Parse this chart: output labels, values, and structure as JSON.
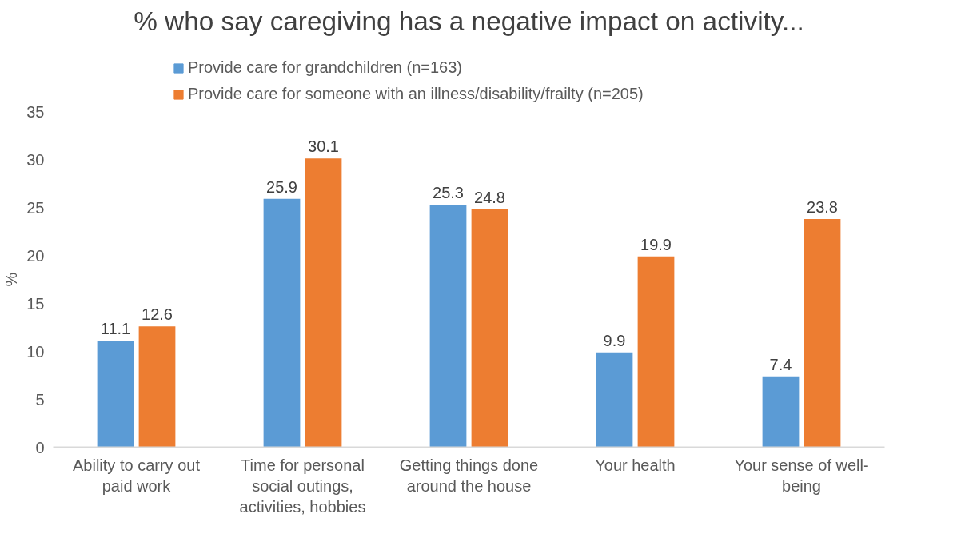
{
  "chart_data": {
    "type": "bar",
    "title": "% who say caregiving has a negative impact on activity...",
    "ylabel": "%",
    "categories": [
      "Ability to carry out paid work",
      "Time for personal social outings, activities, hobbies",
      "Getting things done around the house",
      "Your health",
      "Your sense of well-being"
    ],
    "series": [
      {
        "name": "Provide care for grandchildren (n=163)",
        "color": "#5b9bd5",
        "values": [
          11.1,
          25.9,
          25.3,
          9.9,
          7.4
        ]
      },
      {
        "name": "Provide care for someone with an illness/disability/frailty (n=205)",
        "color": "#ed7d31",
        "values": [
          12.6,
          30.1,
          24.8,
          19.9,
          23.8
        ]
      }
    ],
    "ylim": [
      0,
      35
    ],
    "yticks": [
      0,
      5,
      10,
      15,
      20,
      25,
      30,
      35
    ],
    "grid": false,
    "legend": "top",
    "data_labels": true
  }
}
